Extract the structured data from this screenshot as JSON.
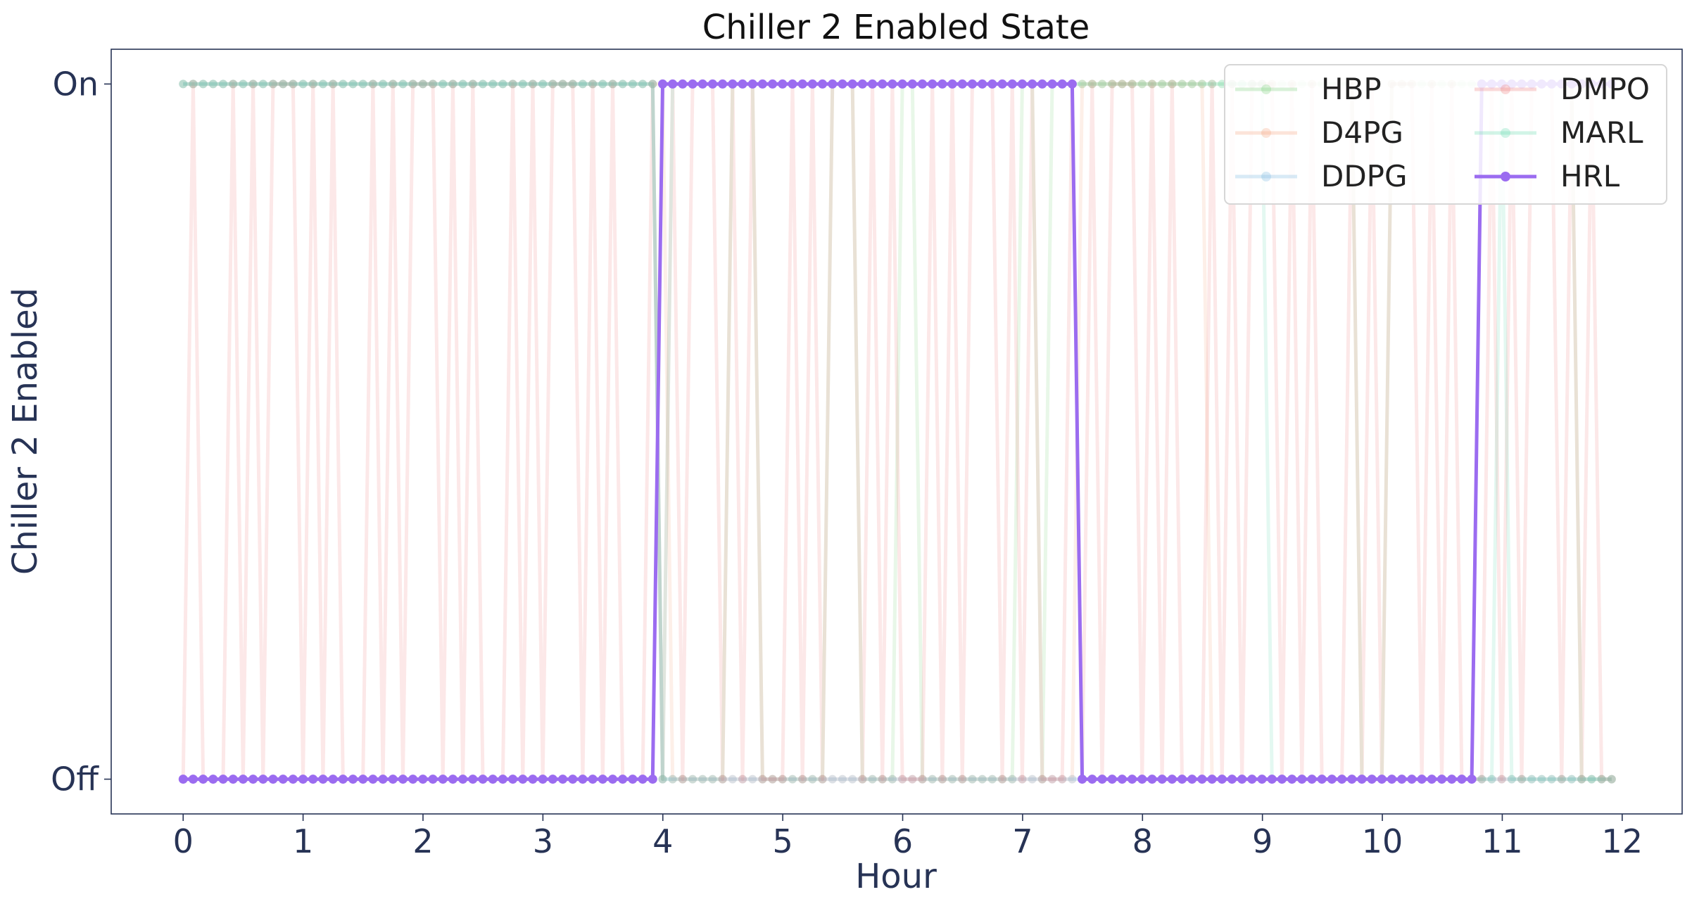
{
  "chart_data": {
    "type": "line",
    "title": "Chiller 2 Enabled State",
    "xlabel": "Hour",
    "ylabel": "Chiller 2 Enabled",
    "xlim": [
      -0.6,
      12.5
    ],
    "ylim": [
      -0.05,
      1.05
    ],
    "x_ticks": [
      0,
      1,
      2,
      3,
      4,
      5,
      6,
      7,
      8,
      9,
      10,
      11,
      12
    ],
    "y_ticks": [
      {
        "value": 0,
        "label": "Off"
      },
      {
        "value": 1,
        "label": "On"
      }
    ],
    "grid": false,
    "legend": {
      "position": "top-right",
      "columns": 2
    },
    "sample_interval_hours": 0.0833,
    "series": [
      {
        "name": "HBP",
        "color": "#7fd07f",
        "opacity": 0.18,
        "pattern": [
          [
            0,
            1
          ],
          [
            3.917,
            0
          ],
          [
            4.5,
            1
          ],
          [
            4.75,
            0
          ],
          [
            5.333,
            1
          ],
          [
            5.583,
            0
          ],
          [
            5.917,
            1
          ],
          [
            6.083,
            0
          ],
          [
            6.917,
            1
          ],
          [
            7.083,
            0
          ],
          [
            7.167,
            1
          ],
          [
            9.75,
            0
          ],
          [
            10.0,
            1
          ],
          [
            11.583,
            0
          ]
        ]
      },
      {
        "name": "D4PG",
        "color": "#f4a582",
        "opacity": 0.18,
        "pattern": [
          [
            0,
            1
          ],
          [
            4.0,
            0
          ],
          [
            7.417,
            1
          ],
          [
            8.5,
            0
          ]
        ]
      },
      {
        "name": "DDPG",
        "color": "#7fb8e0",
        "opacity": 0.25,
        "pattern": [
          [
            0,
            1
          ],
          [
            3.917,
            0
          ]
        ]
      },
      {
        "name": "DMPO",
        "color": "#f08080",
        "opacity": 0.18,
        "pattern": "alternating"
      },
      {
        "name": "MARL",
        "color": "#66d9b0",
        "opacity": 0.18,
        "pattern": [
          [
            0,
            1
          ],
          [
            3.917,
            0
          ],
          [
            4.0,
            1
          ],
          [
            9.0,
            0
          ],
          [
            10.917,
            1
          ],
          [
            11.0,
            0
          ]
        ]
      },
      {
        "name": "HRL",
        "color": "#9b6cf0",
        "opacity": 1.0,
        "pattern": [
          [
            0,
            0
          ],
          [
            3.917,
            1
          ],
          [
            7.417,
            0
          ],
          [
            10.75,
            1
          ]
        ]
      }
    ]
  }
}
